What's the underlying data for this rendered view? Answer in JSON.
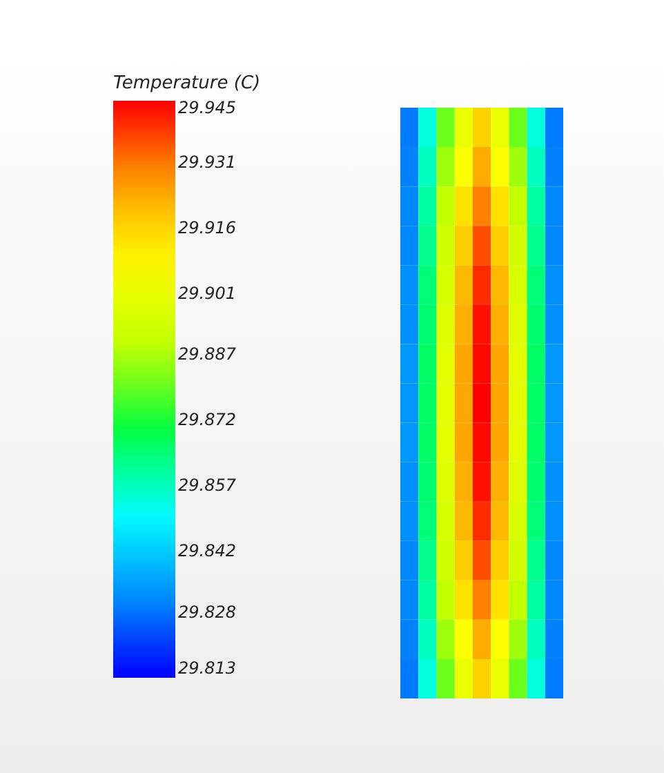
{
  "chart_data": {
    "type": "heatmap",
    "clabel": "Temperature (C)",
    "categories": [
      null,
      null,
      null,
      null,
      null,
      null,
      null,
      null,
      null
    ],
    "y_categories": [
      null,
      null,
      null,
      null,
      null,
      null,
      null,
      null,
      null,
      null,
      null,
      null,
      null,
      null,
      null
    ],
    "cells": [
      [
        29.829,
        29.854,
        29.88,
        29.901,
        29.916,
        29.901,
        29.88,
        29.854,
        29.829
      ],
      [
        29.83,
        29.857,
        29.885,
        29.907,
        29.924,
        29.907,
        29.885,
        29.857,
        29.83
      ],
      [
        29.831,
        29.86,
        29.889,
        29.913,
        29.93,
        29.913,
        29.889,
        29.86,
        29.831
      ],
      [
        29.831,
        29.862,
        29.893,
        29.917,
        29.936,
        29.917,
        29.893,
        29.862,
        29.831
      ],
      [
        29.832,
        29.864,
        29.895,
        29.921,
        29.94,
        29.921,
        29.895,
        29.864,
        29.832
      ],
      [
        29.832,
        29.865,
        29.897,
        29.923,
        29.943,
        29.923,
        29.897,
        29.865,
        29.832
      ],
      [
        29.833,
        29.866,
        29.899,
        29.925,
        29.944,
        29.925,
        29.899,
        29.866,
        29.833
      ],
      [
        29.833,
        29.866,
        29.899,
        29.925,
        29.945,
        29.925,
        29.899,
        29.866,
        29.833
      ],
      [
        29.833,
        29.866,
        29.899,
        29.925,
        29.944,
        29.925,
        29.899,
        29.866,
        29.833
      ],
      [
        29.832,
        29.865,
        29.897,
        29.923,
        29.943,
        29.923,
        29.897,
        29.865,
        29.832
      ],
      [
        29.832,
        29.864,
        29.895,
        29.921,
        29.94,
        29.921,
        29.895,
        29.864,
        29.832
      ],
      [
        29.831,
        29.862,
        29.893,
        29.917,
        29.936,
        29.917,
        29.893,
        29.862,
        29.831
      ],
      [
        29.831,
        29.86,
        29.889,
        29.913,
        29.93,
        29.913,
        29.889,
        29.86,
        29.831
      ],
      [
        29.83,
        29.857,
        29.885,
        29.907,
        29.924,
        29.907,
        29.885,
        29.857,
        29.83
      ],
      [
        29.829,
        29.854,
        29.88,
        29.901,
        29.916,
        29.901,
        29.88,
        29.854,
        29.829
      ]
    ],
    "clim": [
      29.813,
      29.945
    ],
    "cticks": [
      29.813,
      29.828,
      29.842,
      29.857,
      29.872,
      29.887,
      29.901,
      29.916,
      29.931,
      29.945
    ]
  }
}
